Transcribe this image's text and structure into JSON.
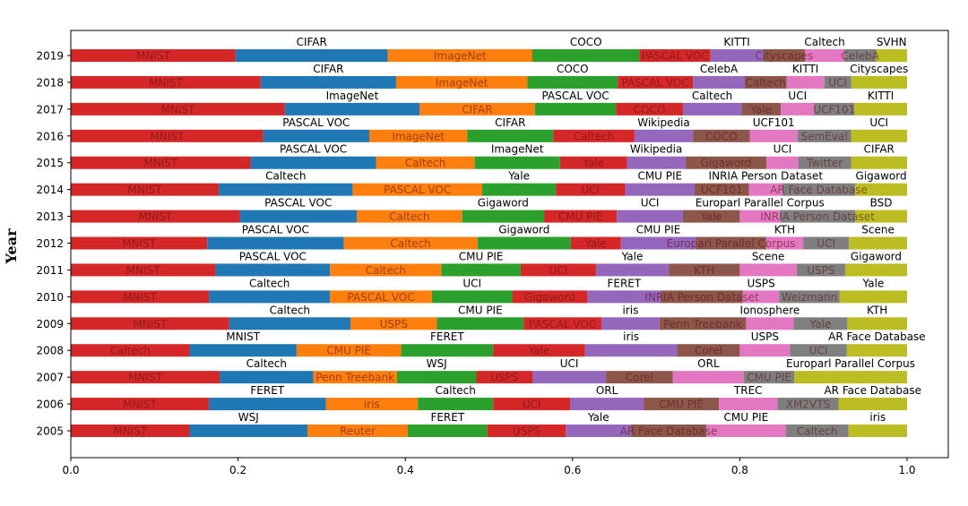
{
  "chart_data": {
    "type": "bar",
    "orientation": "horizontal-stacked",
    "title": "",
    "xlabel": "",
    "ylabel": "Year",
    "xlim": [
      0,
      1.05
    ],
    "x_ticks": [
      "0.0",
      "0.2",
      "0.4",
      "0.6",
      "0.8",
      "1.0"
    ],
    "grid": false,
    "palette": [
      "#d62728",
      "#1f77b4",
      "#ff7f0e",
      "#2ca02c",
      "#d62728",
      "#9467bd",
      "#8c564b",
      "#e377c2",
      "#7f7f7f",
      "#bcbd22"
    ],
    "rows": [
      {
        "year": "2019",
        "segments": [
          {
            "name": "MNIST",
            "value": 0.197
          },
          {
            "name": "CIFAR",
            "value": 0.182
          },
          {
            "name": "ImageNet",
            "value": 0.173
          },
          {
            "name": "COCO",
            "value": 0.128
          },
          {
            "name": "PASCAL VOC",
            "value": 0.085
          },
          {
            "name": "KITTI",
            "value": 0.063
          },
          {
            "name": "Cityscapes",
            "value": 0.05
          },
          {
            "name": "Caltech",
            "value": 0.047
          },
          {
            "name": "CelebA",
            "value": 0.038
          },
          {
            "name": "SVHN",
            "value": 0.037
          }
        ]
      },
      {
        "year": "2018",
        "segments": [
          {
            "name": "MNIST",
            "value": 0.227
          },
          {
            "name": "CIFAR",
            "value": 0.162
          },
          {
            "name": "ImageNet",
            "value": 0.157
          },
          {
            "name": "COCO",
            "value": 0.108
          },
          {
            "name": "PASCAL VOC",
            "value": 0.09
          },
          {
            "name": "CelebA",
            "value": 0.062
          },
          {
            "name": "Caltech",
            "value": 0.05
          },
          {
            "name": "KITTI",
            "value": 0.045
          },
          {
            "name": "UCI",
            "value": 0.032
          },
          {
            "name": "Cityscapes",
            "value": 0.067
          }
        ]
      },
      {
        "year": "2017",
        "segments": [
          {
            "name": "MNIST",
            "value": 0.256
          },
          {
            "name": "ImageNet",
            "value": 0.161
          },
          {
            "name": "CIFAR",
            "value": 0.138
          },
          {
            "name": "PASCAL VOC",
            "value": 0.097
          },
          {
            "name": "COCO",
            "value": 0.08
          },
          {
            "name": "Caltech",
            "value": 0.07
          },
          {
            "name": "Yale",
            "value": 0.047
          },
          {
            "name": "UCI",
            "value": 0.04
          },
          {
            "name": "UCF101",
            "value": 0.048
          },
          {
            "name": "KITTI",
            "value": 0.063
          }
        ]
      },
      {
        "year": "2016",
        "segments": [
          {
            "name": "MNIST",
            "value": 0.23
          },
          {
            "name": "PASCAL VOC",
            "value": 0.127
          },
          {
            "name": "ImageNet",
            "value": 0.117
          },
          {
            "name": "CIFAR",
            "value": 0.103
          },
          {
            "name": "Caltech",
            "value": 0.097
          },
          {
            "name": "Wikipedia",
            "value": 0.07
          },
          {
            "name": "COCO",
            "value": 0.068
          },
          {
            "name": "UCF101",
            "value": 0.057
          },
          {
            "name": "SemEval",
            "value": 0.064
          },
          {
            "name": "UCI",
            "value": 0.067
          }
        ]
      },
      {
        "year": "2015",
        "segments": [
          {
            "name": "MNIST",
            "value": 0.215
          },
          {
            "name": "PASCAL VOC",
            "value": 0.15
          },
          {
            "name": "Caltech",
            "value": 0.118
          },
          {
            "name": "ImageNet",
            "value": 0.102
          },
          {
            "name": "Yale",
            "value": 0.08
          },
          {
            "name": "Wikipedia",
            "value": 0.07
          },
          {
            "name": "Gigaword",
            "value": 0.097
          },
          {
            "name": "UCI",
            "value": 0.038
          },
          {
            "name": "Twitter",
            "value": 0.063
          },
          {
            "name": "CIFAR",
            "value": 0.067
          }
        ]
      },
      {
        "year": "2014",
        "segments": [
          {
            "name": "MNIST",
            "value": 0.177
          },
          {
            "name": "Caltech",
            "value": 0.16
          },
          {
            "name": "PASCAL VOC",
            "value": 0.155
          },
          {
            "name": "Yale",
            "value": 0.088
          },
          {
            "name": "UCI",
            "value": 0.083
          },
          {
            "name": "CMU PIE",
            "value": 0.083
          },
          {
            "name": "UCF101",
            "value": 0.065
          },
          {
            "name": "INRIA Person Dataset",
            "value": 0.04
          },
          {
            "name": "AR Face Database",
            "value": 0.087
          },
          {
            "name": "Gigaword",
            "value": 0.062
          }
        ]
      },
      {
        "year": "2013",
        "segments": [
          {
            "name": "MNIST",
            "value": 0.202
          },
          {
            "name": "PASCAL VOC",
            "value": 0.14
          },
          {
            "name": "Caltech",
            "value": 0.126
          },
          {
            "name": "Gigaword",
            "value": 0.098
          },
          {
            "name": "CMU PIE",
            "value": 0.087
          },
          {
            "name": "UCI",
            "value": 0.079
          },
          {
            "name": "Yale",
            "value": 0.068
          },
          {
            "name": "Europarl Parallel Corpus",
            "value": 0.048
          },
          {
            "name": "INRIA Person Dataset",
            "value": 0.09
          },
          {
            "name": "BSD",
            "value": 0.062
          }
        ]
      },
      {
        "year": "2012",
        "segments": [
          {
            "name": "MNIST",
            "value": 0.155
          },
          {
            "name": "PASCAL VOC",
            "value": 0.155
          },
          {
            "name": "Caltech",
            "value": 0.152
          },
          {
            "name": "Gigaword",
            "value": 0.106
          },
          {
            "name": "Yale",
            "value": 0.057
          },
          {
            "name": "CMU PIE",
            "value": 0.085
          },
          {
            "name": "Europarl Parallel Corpus",
            "value": 0.08
          },
          {
            "name": "KTH",
            "value": 0.042
          },
          {
            "name": "UCI",
            "value": 0.052
          },
          {
            "name": "Scene",
            "value": 0.066
          }
        ]
      },
      {
        "year": "2011",
        "segments": [
          {
            "name": "MNIST",
            "value": 0.173
          },
          {
            "name": "PASCAL VOC",
            "value": 0.137
          },
          {
            "name": "Caltech",
            "value": 0.133
          },
          {
            "name": "CMU PIE",
            "value": 0.095
          },
          {
            "name": "UCI",
            "value": 0.09
          },
          {
            "name": "Yale",
            "value": 0.087
          },
          {
            "name": "KTH",
            "value": 0.085
          },
          {
            "name": "Scene",
            "value": 0.068
          },
          {
            "name": "USPS",
            "value": 0.058
          },
          {
            "name": "Gigaword",
            "value": 0.074
          }
        ]
      },
      {
        "year": "2010",
        "segments": [
          {
            "name": "MNIST",
            "value": 0.16
          },
          {
            "name": "Caltech",
            "value": 0.14
          },
          {
            "name": "PASCAL VOC",
            "value": 0.118
          },
          {
            "name": "UCI",
            "value": 0.093
          },
          {
            "name": "Gigaword",
            "value": 0.087
          },
          {
            "name": "FERET",
            "value": 0.085
          },
          {
            "name": "INRIA Person Dataset",
            "value": 0.095
          },
          {
            "name": "USPS",
            "value": 0.042
          },
          {
            "name": "Weizmann",
            "value": 0.07
          },
          {
            "name": "Yale",
            "value": 0.078
          }
        ]
      },
      {
        "year": "2009",
        "segments": [
          {
            "name": "MNIST",
            "value": 0.183
          },
          {
            "name": "Caltech",
            "value": 0.14
          },
          {
            "name": "USPS",
            "value": 0.1
          },
          {
            "name": "CMU PIE",
            "value": 0.1
          },
          {
            "name": "PASCAL VOC",
            "value": 0.09
          },
          {
            "name": "iris",
            "value": 0.067
          },
          {
            "name": "Penn Treebank",
            "value": 0.1
          },
          {
            "name": "Ionosphere",
            "value": 0.055
          },
          {
            "name": "Yale",
            "value": 0.062
          },
          {
            "name": "KTH",
            "value": 0.069
          }
        ]
      },
      {
        "year": "2008",
        "segments": [
          {
            "name": "Caltech",
            "value": 0.142
          },
          {
            "name": "MNIST",
            "value": 0.128
          },
          {
            "name": "CMU PIE",
            "value": 0.125
          },
          {
            "name": "FERET",
            "value": 0.11
          },
          {
            "name": "Yale",
            "value": 0.11
          },
          {
            "name": "iris",
            "value": 0.11
          },
          {
            "name": "Corel",
            "value": 0.075
          },
          {
            "name": "USPS",
            "value": 0.06
          },
          {
            "name": "UCI",
            "value": 0.068
          },
          {
            "name": "AR Face Database",
            "value": 0.072
          }
        ]
      },
      {
        "year": "2007",
        "segments": [
          {
            "name": "MNIST",
            "value": 0.178
          },
          {
            "name": "Caltech",
            "value": 0.112
          },
          {
            "name": "Penn Treebank",
            "value": 0.1
          },
          {
            "name": "WSJ",
            "value": 0.095
          },
          {
            "name": "USPS",
            "value": 0.067
          },
          {
            "name": "UCI",
            "value": 0.088
          },
          {
            "name": "Corel",
            "value": 0.08
          },
          {
            "name": "ORL",
            "value": 0.085
          },
          {
            "name": "CMU PIE",
            "value": 0.06
          },
          {
            "name": "Europarl Parallel Corpus",
            "value": 0.135
          }
        ]
      },
      {
        "year": "2006",
        "segments": [
          {
            "name": "MNIST",
            "value": 0.165
          },
          {
            "name": "FERET",
            "value": 0.14
          },
          {
            "name": "iris",
            "value": 0.11
          },
          {
            "name": "Caltech",
            "value": 0.09
          },
          {
            "name": "UCI",
            "value": 0.092
          },
          {
            "name": "ORL",
            "value": 0.088
          },
          {
            "name": "CMU PIE",
            "value": 0.09
          },
          {
            "name": "TREC",
            "value": 0.07
          },
          {
            "name": "XM2VTS",
            "value": 0.073
          },
          {
            "name": "AR Face Database",
            "value": 0.082
          }
        ]
      },
      {
        "year": "2005",
        "segments": [
          {
            "name": "MNIST",
            "value": 0.142
          },
          {
            "name": "WSJ",
            "value": 0.141
          },
          {
            "name": "Reuter",
            "value": 0.12
          },
          {
            "name": "FERET",
            "value": 0.095
          },
          {
            "name": "USPS",
            "value": 0.094
          },
          {
            "name": "Yale",
            "value": 0.078
          },
          {
            "name": "AR Face Database",
            "value": 0.09
          },
          {
            "name": "CMU PIE",
            "value": 0.095
          },
          {
            "name": "Caltech",
            "value": 0.075
          },
          {
            "name": "iris",
            "value": 0.07
          }
        ]
      }
    ]
  }
}
